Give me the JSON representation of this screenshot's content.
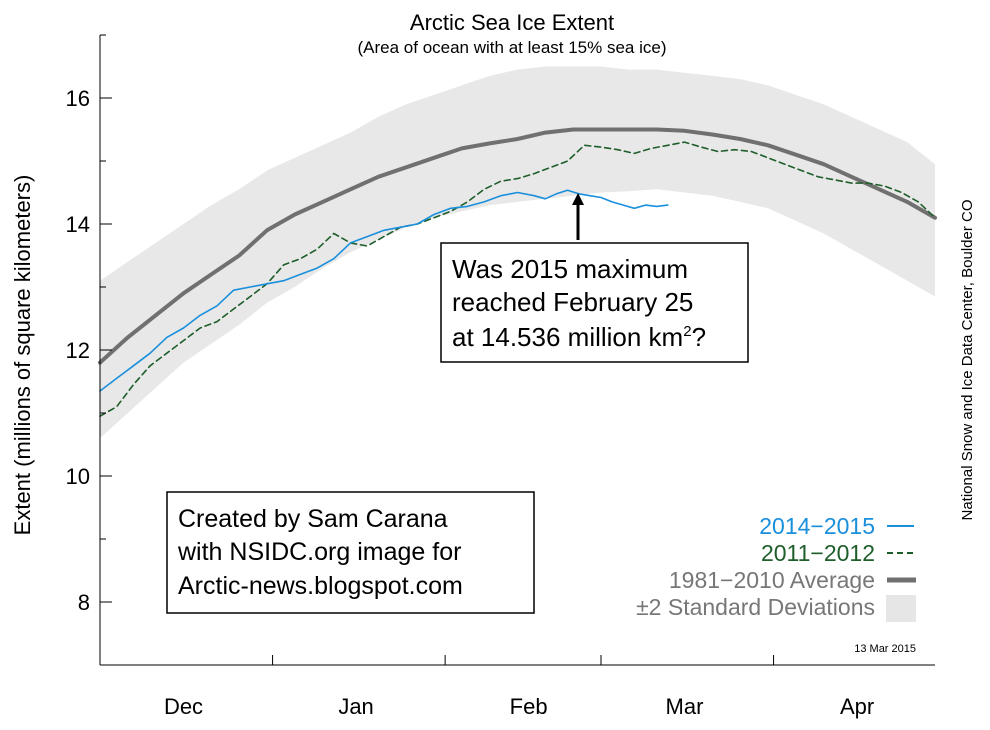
{
  "chart_data": {
    "type": "line",
    "title": "Arctic Sea Ice Extent",
    "subtitle": "(Area of ocean with at least 15% sea ice)",
    "ylabel": "Extent (millions of square kilometers)",
    "ylim": [
      7,
      17
    ],
    "y_ticks": [
      8,
      10,
      12,
      14,
      16
    ],
    "x_month_labels": [
      {
        "label": "Dec",
        "x": 15
      },
      {
        "label": "Jan",
        "x": 46
      },
      {
        "label": "Feb",
        "x": 77
      },
      {
        "label": "Mar",
        "x": 105
      },
      {
        "label": "Apr",
        "x": 136
      }
    ],
    "x_ticks_days": [
      31,
      62,
      90,
      121
    ],
    "xlim": [
      0,
      150
    ],
    "date_stamp": "13 Mar 2015",
    "credit": "National Snow and Ice Data Center, Boulder CO",
    "series": [
      {
        "name": "2014−2015",
        "color": "#1a8fdc",
        "style": "solid",
        "x": [
          0,
          3,
          6,
          9,
          12,
          15,
          18,
          21,
          24,
          27,
          30,
          33,
          36,
          39,
          42,
          45,
          48,
          51,
          54,
          57,
          60,
          63,
          66,
          69,
          72,
          75,
          78,
          80,
          82,
          84,
          86,
          88,
          90,
          92,
          94,
          96,
          98,
          100,
          102
        ],
        "y": [
          11.35,
          11.55,
          11.75,
          11.95,
          12.2,
          12.35,
          12.55,
          12.7,
          12.95,
          13.0,
          13.05,
          13.1,
          13.2,
          13.3,
          13.45,
          13.7,
          13.8,
          13.9,
          13.95,
          14.0,
          14.15,
          14.25,
          14.28,
          14.35,
          14.45,
          14.5,
          14.45,
          14.4,
          14.48,
          14.536,
          14.48,
          14.45,
          14.42,
          14.35,
          14.3,
          14.25,
          14.3,
          14.28,
          14.3
        ]
      },
      {
        "name": "2011−2012",
        "color": "#1e5e2a",
        "style": "dashed",
        "x": [
          0,
          3,
          6,
          9,
          12,
          15,
          18,
          21,
          24,
          27,
          30,
          33,
          36,
          39,
          42,
          45,
          48,
          51,
          54,
          57,
          60,
          63,
          66,
          69,
          72,
          75,
          78,
          81,
          84,
          87,
          90,
          93,
          96,
          99,
          102,
          105,
          108,
          111,
          114,
          117,
          120,
          123,
          126,
          129,
          132,
          135,
          138,
          141,
          144,
          147,
          150
        ],
        "y": [
          10.95,
          11.1,
          11.45,
          11.75,
          11.95,
          12.15,
          12.35,
          12.45,
          12.65,
          12.85,
          13.05,
          13.35,
          13.45,
          13.6,
          13.85,
          13.7,
          13.65,
          13.8,
          13.95,
          14.0,
          14.1,
          14.2,
          14.35,
          14.55,
          14.68,
          14.72,
          14.8,
          14.9,
          15.0,
          15.25,
          15.22,
          15.18,
          15.12,
          15.2,
          15.25,
          15.3,
          15.22,
          15.15,
          15.18,
          15.15,
          15.05,
          14.95,
          14.85,
          14.75,
          14.7,
          14.65,
          14.65,
          14.6,
          14.5,
          14.35,
          14.1
        ]
      },
      {
        "name": "1981−2010 Average",
        "color": "#707070",
        "style": "thick",
        "x": [
          0,
          5,
          10,
          15,
          20,
          25,
          30,
          35,
          40,
          45,
          50,
          55,
          60,
          65,
          70,
          75,
          80,
          85,
          90,
          95,
          100,
          105,
          110,
          115,
          120,
          125,
          130,
          135,
          140,
          145,
          150
        ],
        "y": [
          11.8,
          12.2,
          12.55,
          12.9,
          13.2,
          13.5,
          13.9,
          14.15,
          14.35,
          14.55,
          14.75,
          14.9,
          15.05,
          15.2,
          15.28,
          15.35,
          15.45,
          15.5,
          15.5,
          15.5,
          15.5,
          15.48,
          15.42,
          15.35,
          15.25,
          15.1,
          14.95,
          14.75,
          14.55,
          14.35,
          14.1
        ]
      }
    ],
    "std_band": {
      "name": "±2 Standard Deviations",
      "color": "#e8e8e8",
      "x": [
        0,
        5,
        10,
        15,
        20,
        25,
        30,
        35,
        40,
        45,
        50,
        55,
        60,
        65,
        70,
        75,
        80,
        85,
        90,
        95,
        100,
        105,
        110,
        115,
        120,
        125,
        130,
        135,
        140,
        145,
        150
      ],
      "upper": [
        13.1,
        13.4,
        13.7,
        14.0,
        14.3,
        14.55,
        14.85,
        15.05,
        15.25,
        15.45,
        15.7,
        15.9,
        16.05,
        16.2,
        16.35,
        16.45,
        16.5,
        16.5,
        16.5,
        16.45,
        16.45,
        16.4,
        16.35,
        16.3,
        16.2,
        16.05,
        15.9,
        15.7,
        15.5,
        15.3,
        14.95
      ],
      "lower": [
        10.6,
        11.0,
        11.4,
        11.8,
        12.1,
        12.4,
        12.75,
        13.0,
        13.3,
        13.55,
        13.75,
        13.95,
        14.1,
        14.2,
        14.3,
        14.35,
        14.4,
        14.45,
        14.5,
        14.52,
        14.55,
        14.5,
        14.45,
        14.35,
        14.25,
        14.05,
        13.85,
        13.6,
        13.35,
        13.1,
        12.85
      ]
    }
  },
  "annotation": {
    "line1": "Was 2015 maximum",
    "line2": "reached February 25",
    "line3_prefix": "at 14.536 million km",
    "line3_sup": "2",
    "line3_suffix": "?",
    "arrow_target_x": 84,
    "arrow_target_y": 14.536
  },
  "credit_box": {
    "line1": "Created by Sam Carana",
    "line2": "with NSIDC.org image for",
    "line3": "Arctic-news.blogspot.com"
  },
  "legend": [
    {
      "label": "2014−2015",
      "color": "#1a8fdc",
      "style": "solid"
    },
    {
      "label": "2011−2012",
      "color": "#1e5e2a",
      "style": "dashed"
    },
    {
      "label": "1981−2010 Average",
      "color": "#707070",
      "style": "thick"
    },
    {
      "label": "±2 Standard Deviations",
      "color": "#e8e8e8",
      "style": "band"
    }
  ]
}
